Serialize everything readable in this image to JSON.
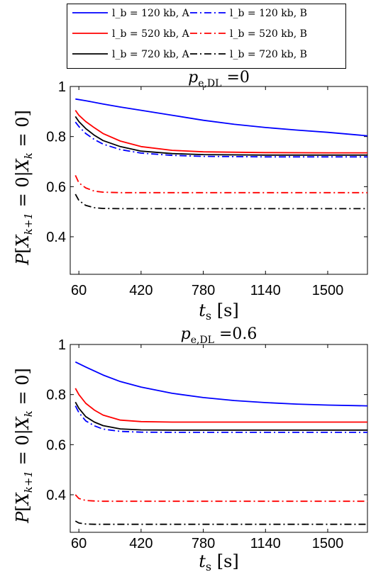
{
  "legend": {
    "items": [
      {
        "label": "l_b = 120 kb, A",
        "color": "#0000ff",
        "dash": "solid"
      },
      {
        "label": "l_b = 120 kb, B",
        "color": "#0000ff",
        "dash": "dashdot"
      },
      {
        "label": "l_b = 520 kb, A",
        "color": "#ff0000",
        "dash": "solid"
      },
      {
        "label": "l_b = 520 kb, B",
        "color": "#ff0000",
        "dash": "dashdot"
      },
      {
        "label": "l_b = 720 kb, A",
        "color": "#000000",
        "dash": "solid"
      },
      {
        "label": "l_b = 720 kb, B",
        "color": "#000000",
        "dash": "dashdot"
      }
    ]
  },
  "chart_data": [
    {
      "type": "line",
      "title": "p_e,DL = 0",
      "title_value": "0",
      "xlabel": "t_s [s]",
      "ylabel": "P[X_k+1 = 0 | X_k = 0]",
      "xlim": [
        10,
        1730
      ],
      "ylim": [
        0.25,
        1.0
      ],
      "xticks": [
        60,
        420,
        780,
        1140,
        1500
      ],
      "yticks": [
        0.4,
        0.6,
        0.8,
        1
      ],
      "grid": false,
      "series": [
        {
          "name": "l_b = 120 kb, A",
          "color": "#0000ff",
          "dash": "solid",
          "x": [
            40,
            100,
            200,
            300,
            420,
            600,
            780,
            960,
            1140,
            1320,
            1500,
            1730
          ],
          "y": [
            0.95,
            0.943,
            0.93,
            0.918,
            0.905,
            0.885,
            0.865,
            0.849,
            0.836,
            0.826,
            0.817,
            0.803
          ]
        },
        {
          "name": "l_b = 520 kb, A",
          "color": "#ff0000",
          "dash": "solid",
          "x": [
            40,
            60,
            100,
            150,
            200,
            300,
            420,
            600,
            780,
            1140,
            1500,
            1730
          ],
          "y": [
            0.905,
            0.885,
            0.86,
            0.835,
            0.812,
            0.782,
            0.76,
            0.745,
            0.739,
            0.736,
            0.735,
            0.735
          ]
        },
        {
          "name": "l_b = 720 kb, A",
          "color": "#000000",
          "dash": "solid",
          "x": [
            40,
            60,
            100,
            150,
            200,
            300,
            420,
            600,
            780,
            1140,
            1500,
            1730
          ],
          "y": [
            0.88,
            0.86,
            0.832,
            0.805,
            0.784,
            0.76,
            0.742,
            0.732,
            0.728,
            0.726,
            0.726,
            0.726
          ]
        },
        {
          "name": "l_b = 120 kb, B",
          "color": "#0000ff",
          "dash": "dashdot",
          "x": [
            40,
            60,
            100,
            150,
            200,
            300,
            420,
            600,
            780,
            1140,
            1500,
            1730
          ],
          "y": [
            0.858,
            0.84,
            0.812,
            0.788,
            0.77,
            0.748,
            0.734,
            0.725,
            0.721,
            0.719,
            0.719,
            0.719
          ]
        },
        {
          "name": "l_b = 520 kb, B",
          "color": "#ff0000",
          "dash": "dashdot",
          "x": [
            40,
            60,
            100,
            150,
            200,
            300,
            420,
            780,
            1140,
            1500,
            1730
          ],
          "y": [
            0.645,
            0.615,
            0.595,
            0.582,
            0.578,
            0.576,
            0.576,
            0.576,
            0.576,
            0.576,
            0.576
          ]
        },
        {
          "name": "l_b = 720 kb, B",
          "color": "#000000",
          "dash": "dashdot",
          "x": [
            40,
            60,
            100,
            150,
            200,
            300,
            420,
            780,
            1140,
            1500,
            1730
          ],
          "y": [
            0.57,
            0.545,
            0.525,
            0.516,
            0.513,
            0.512,
            0.512,
            0.512,
            0.512,
            0.512,
            0.512
          ]
        }
      ]
    },
    {
      "type": "line",
      "title": "p_e,DL = 0.6",
      "title_value": "0.6",
      "xlabel": "t_s [s]",
      "ylabel": "P[X_k+1 = 0 | X_k = 0]",
      "xlim": [
        10,
        1730
      ],
      "ylim": [
        0.25,
        1.0
      ],
      "xticks": [
        60,
        420,
        780,
        1140,
        1500
      ],
      "yticks": [
        0.4,
        0.6,
        0.8,
        1
      ],
      "grid": false,
      "series": [
        {
          "name": "l_b = 120 kb, A",
          "color": "#0000ff",
          "dash": "solid",
          "x": [
            40,
            100,
            200,
            300,
            420,
            600,
            780,
            960,
            1140,
            1320,
            1500,
            1730
          ],
          "y": [
            0.93,
            0.91,
            0.878,
            0.852,
            0.83,
            0.805,
            0.788,
            0.776,
            0.768,
            0.762,
            0.758,
            0.755
          ]
        },
        {
          "name": "l_b = 520 kb, A",
          "color": "#ff0000",
          "dash": "solid",
          "x": [
            40,
            60,
            100,
            150,
            200,
            300,
            420,
            600,
            780,
            1140,
            1500,
            1730
          ],
          "y": [
            0.825,
            0.8,
            0.765,
            0.738,
            0.718,
            0.698,
            0.692,
            0.69,
            0.69,
            0.69,
            0.69,
            0.69
          ]
        },
        {
          "name": "l_b = 720 kb, A",
          "color": "#000000",
          "dash": "solid",
          "x": [
            40,
            60,
            100,
            150,
            200,
            300,
            420,
            600,
            780,
            1140,
            1500,
            1730
          ],
          "y": [
            0.77,
            0.745,
            0.712,
            0.69,
            0.676,
            0.663,
            0.659,
            0.658,
            0.658,
            0.658,
            0.658,
            0.658
          ]
        },
        {
          "name": "l_b = 120 kb, B",
          "color": "#0000ff",
          "dash": "dashdot",
          "x": [
            40,
            60,
            100,
            150,
            200,
            300,
            420,
            600,
            780,
            1140,
            1500,
            1730
          ],
          "y": [
            0.755,
            0.728,
            0.695,
            0.675,
            0.662,
            0.653,
            0.65,
            0.649,
            0.649,
            0.649,
            0.649,
            0.649
          ]
        },
        {
          "name": "l_b = 520 kb, B",
          "color": "#ff0000",
          "dash": "dashdot",
          "x": [
            40,
            60,
            100,
            150,
            200,
            300,
            420,
            780,
            1140,
            1500,
            1730
          ],
          "y": [
            0.4,
            0.385,
            0.377,
            0.375,
            0.374,
            0.374,
            0.374,
            0.374,
            0.374,
            0.374,
            0.374
          ]
        },
        {
          "name": "l_b = 720 kb, B",
          "color": "#000000",
          "dash": "dashdot",
          "x": [
            40,
            60,
            100,
            150,
            200,
            300,
            420,
            780,
            1140,
            1500,
            1730
          ],
          "y": [
            0.295,
            0.287,
            0.283,
            0.282,
            0.282,
            0.282,
            0.282,
            0.282,
            0.282,
            0.282,
            0.282
          ]
        }
      ]
    }
  ]
}
